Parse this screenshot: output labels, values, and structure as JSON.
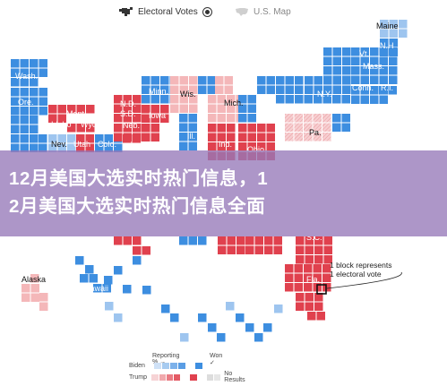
{
  "tabs": [
    {
      "label": "Electoral Votes",
      "icon": "electoral-map-icon",
      "active": true
    },
    {
      "label": "U.S. Map",
      "icon": "us-map-icon",
      "active": false
    }
  ],
  "banner": {
    "line1": "12月美国大选实时热门信息，1",
    "line2": "2月美国大选实时热门信息全面"
  },
  "annotation": {
    "line1": "1 block represents",
    "line2": "1 electoral vote"
  },
  "states": [
    {
      "label": "Maine",
      "color": "#9ec5ef"
    },
    {
      "label": "N.H",
      "color": "#3d8ee0"
    },
    {
      "label": "Vt.",
      "color": "#3d8ee0"
    },
    {
      "label": "Mass.",
      "color": "#3d8ee0"
    },
    {
      "label": "Conn.",
      "color": "#3d8ee0"
    },
    {
      "label": "R.I.",
      "color": "#3d8ee0"
    },
    {
      "label": "N.Y.",
      "color": "#3d8ee0"
    },
    {
      "label": "Wash.",
      "color": "#3d8ee0"
    },
    {
      "label": "Ore.",
      "color": "#3d8ee0"
    },
    {
      "label": "Mont.",
      "color": "#e0414e"
    },
    {
      "label": "Idaho",
      "color": "#e0414e"
    },
    {
      "label": "Wyo.",
      "color": "#e0414e"
    },
    {
      "label": "Nev.",
      "color": "#9ec5ef"
    },
    {
      "label": "Utah",
      "color": "#e0414e"
    },
    {
      "label": "Colo.",
      "color": "#3d8ee0"
    },
    {
      "label": "N.D.",
      "color": "#e0414e"
    },
    {
      "label": "S.D.",
      "color": "#e0414e"
    },
    {
      "label": "Neb.",
      "color": "#e0414e"
    },
    {
      "label": "Minn.",
      "color": "#3d8ee0"
    },
    {
      "label": "Iowa",
      "color": "#e0414e"
    },
    {
      "label": "Wis.",
      "color": "#f4b7b9"
    },
    {
      "label": "Ill.",
      "color": "#3d8ee0"
    },
    {
      "label": "Mich.",
      "color": "#f4b7b9"
    },
    {
      "label": "Ind.",
      "color": "#e0414e"
    },
    {
      "label": "Ohio",
      "color": "#e0414e"
    },
    {
      "label": "Pa.",
      "color": "#f4b7b9"
    },
    {
      "label": "S.C.",
      "color": "#e0414e"
    },
    {
      "label": "Fla.",
      "color": "#e0414e"
    },
    {
      "label": "Alaska",
      "color": "#f4b7b9"
    },
    {
      "label": "Hawaii",
      "color": "#3d8ee0"
    }
  ],
  "legend": {
    "reporting_label": "Reporting % →",
    "won_label": "Won ✓",
    "rows": [
      {
        "label": "Biden",
        "color": "#3d8ee0"
      },
      {
        "label": "Trump",
        "color": "#e0414e"
      }
    ],
    "no_results_label": "No Results"
  },
  "colors": {
    "dem": "#3d8ee0",
    "dem_light": "#9ec5ef",
    "rep": "#e0414e",
    "rep_light": "#f4b7b9",
    "pending": "#dddddd",
    "banner": "#9678b9"
  }
}
